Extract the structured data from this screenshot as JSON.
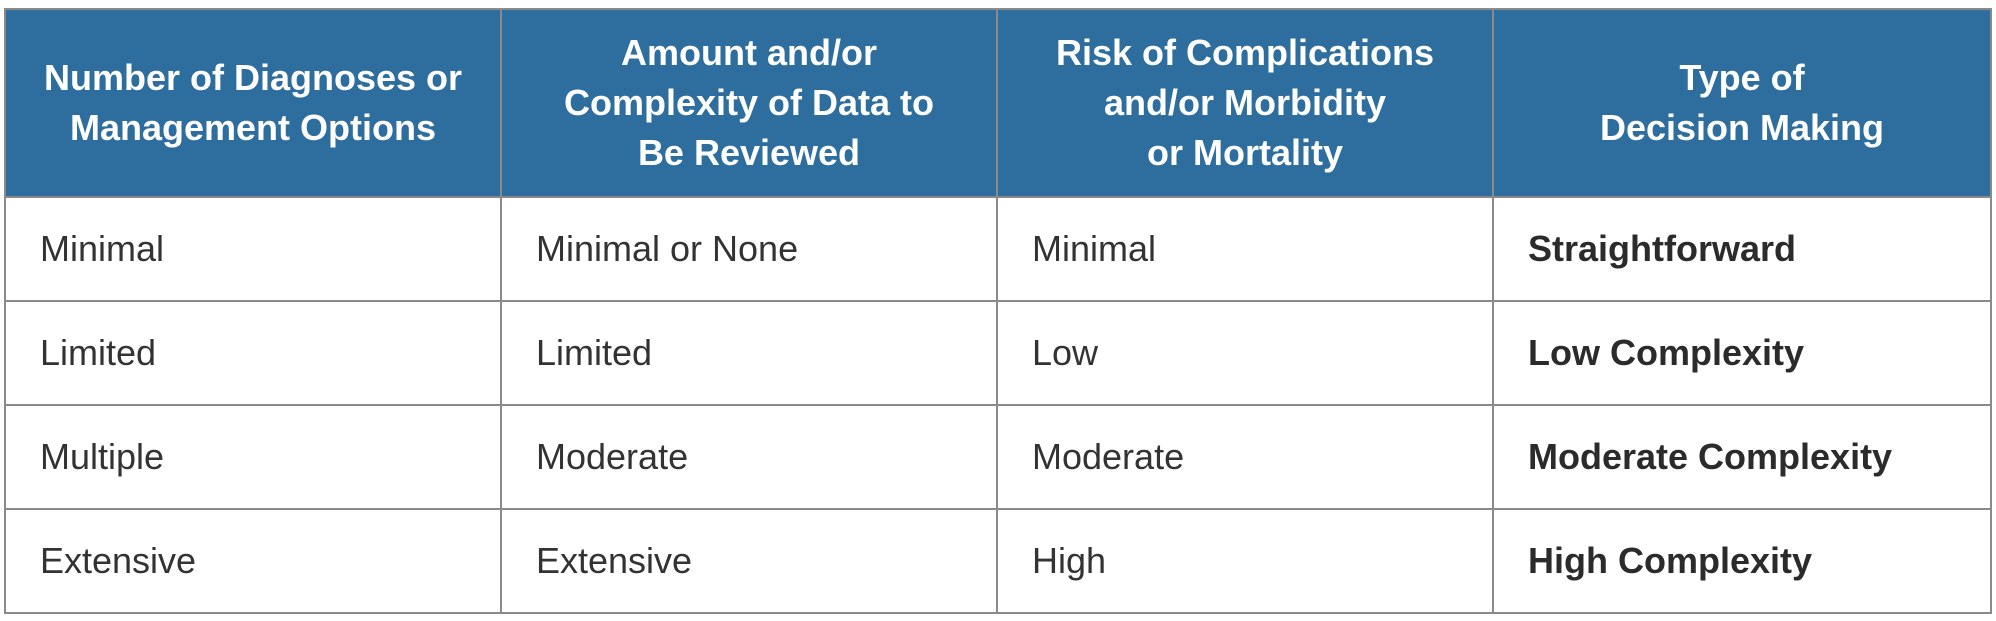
{
  "table": {
    "headers": [
      [
        "Number of Diagnoses or",
        "Management Options"
      ],
      [
        "Amount and/or",
        "Complexity of Data to",
        "Be Reviewed"
      ],
      [
        "Risk of Complications",
        "and/or Morbidity",
        "or Mortality"
      ],
      [
        "Type of",
        "Decision Making"
      ]
    ],
    "rows": [
      [
        "Minimal",
        "Minimal or None",
        "Minimal",
        "Straightforward"
      ],
      [
        "Limited",
        "Limited",
        "Low",
        "Low Complexity"
      ],
      [
        "Multiple",
        "Moderate",
        "Moderate",
        "Moderate Complexity"
      ],
      [
        "Extensive",
        "Extensive",
        "High",
        "High Complexity"
      ]
    ]
  },
  "colors": {
    "header_bg": "#2e6e9e",
    "header_text": "#ffffff",
    "border": "#8a8a8a",
    "body_text": "#333333"
  }
}
